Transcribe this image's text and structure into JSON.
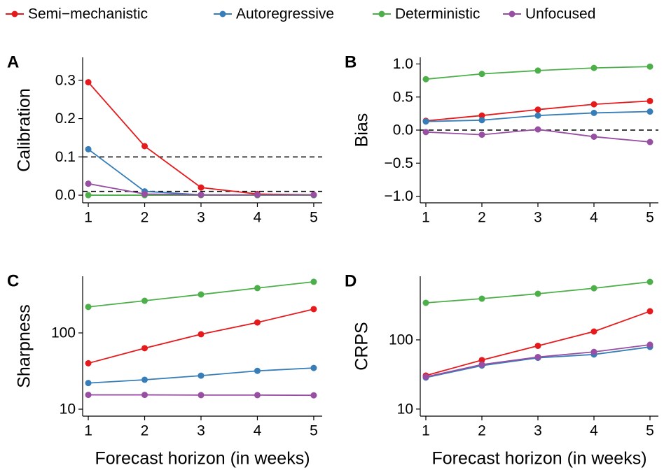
{
  "legend": [
    {
      "name": "Semi−mechanistic",
      "color": "#e41a1c"
    },
    {
      "name": "Autoregressive",
      "color": "#377eb8"
    },
    {
      "name": "Deterministic",
      "color": "#4daf4a"
    },
    {
      "name": "Unfocused",
      "color": "#984ea3"
    }
  ],
  "chart_data": [
    {
      "type": "line",
      "label": "A",
      "ylabel": "Calibration",
      "x": [
        1,
        2,
        3,
        4,
        5
      ],
      "xlim": [
        0.9,
        5.15
      ],
      "xticks": [
        1,
        2,
        3,
        4,
        5
      ],
      "ylim": [
        -0.02,
        0.36
      ],
      "yticks": [
        {
          "value": 0,
          "label": "0.0"
        },
        0.1,
        0.2,
        0.3
      ],
      "hlines": [
        0.1,
        0.01
      ],
      "series": [
        {
          "values": [
            0.295,
            0.128,
            0.02,
            0.003,
            0.001
          ]
        },
        {
          "values": [
            0.12,
            0.01,
            0.001,
            0.0,
            0.0
          ]
        },
        {
          "values": [
            0,
            0,
            0,
            0,
            0
          ]
        },
        {
          "values": [
            0.03,
            0.003,
            0.001,
            0.001,
            0.001
          ]
        }
      ]
    },
    {
      "type": "line",
      "label": "B",
      "ylabel": "Bias",
      "x": [
        1,
        2,
        3,
        4,
        5
      ],
      "xlim": [
        0.9,
        5.15
      ],
      "xticks": [
        1,
        2,
        3,
        4,
        5
      ],
      "ylim": [
        -1.1,
        1.1
      ],
      "yticks": [
        {
          "value": -1,
          "label": "−1.0"
        },
        {
          "value": -0.5,
          "label": "−0.5"
        },
        {
          "value": 0,
          "label": "0.0"
        },
        0.5,
        {
          "value": 1,
          "label": "1.0"
        }
      ],
      "hlines": [
        0
      ],
      "series": [
        {
          "values": [
            0.14,
            0.22,
            0.31,
            0.39,
            0.44
          ]
        },
        {
          "values": [
            0.13,
            0.15,
            0.22,
            0.26,
            0.28
          ]
        },
        {
          "values": [
            0.77,
            0.85,
            0.9,
            0.94,
            0.96
          ]
        },
        {
          "values": [
            -0.03,
            -0.07,
            0.01,
            -0.1,
            -0.18
          ]
        }
      ]
    },
    {
      "type": "line",
      "label": "C",
      "ylabel": "Sharpness",
      "xlabel": "Forecast horizon (in weeks)",
      "x": [
        1,
        2,
        3,
        4,
        5
      ],
      "xlim": [
        0.9,
        5.15
      ],
      "xticks": [
        1,
        2,
        3,
        4,
        5
      ],
      "log_y": true,
      "ylim": [
        8.1,
        553
      ],
      "yticks": [
        10,
        100
      ],
      "series": [
        {
          "values": [
            40,
            63,
            96,
            137,
            205
          ]
        },
        {
          "values": [
            22,
            24.3,
            27.5,
            31.8,
            34.7
          ]
        },
        {
          "values": [
            219,
            264,
            319,
            387,
            468
          ]
        },
        {
          "values": [
            15.4,
            15.4,
            15.3,
            15.3,
            15.2
          ]
        }
      ]
    },
    {
      "type": "line",
      "label": "D",
      "ylabel": "CRPS",
      "xlabel": "Forecast horizon (in weeks)",
      "x": [
        1,
        2,
        3,
        4,
        5
      ],
      "xlim": [
        0.9,
        5.15
      ],
      "xticks": [
        1,
        2,
        3,
        4,
        5
      ],
      "log_y": true,
      "ylim": [
        7.9,
        830
      ],
      "yticks": [
        10,
        100
      ],
      "series": [
        {
          "values": [
            30.5,
            51,
            82,
            132,
            259
          ]
        },
        {
          "values": [
            28.5,
            42.5,
            55,
            61.5,
            79
          ]
        },
        {
          "values": [
            343,
            394,
            464,
            557,
            689
          ]
        },
        {
          "values": [
            29.2,
            44,
            56.5,
            67,
            85
          ]
        }
      ]
    }
  ]
}
